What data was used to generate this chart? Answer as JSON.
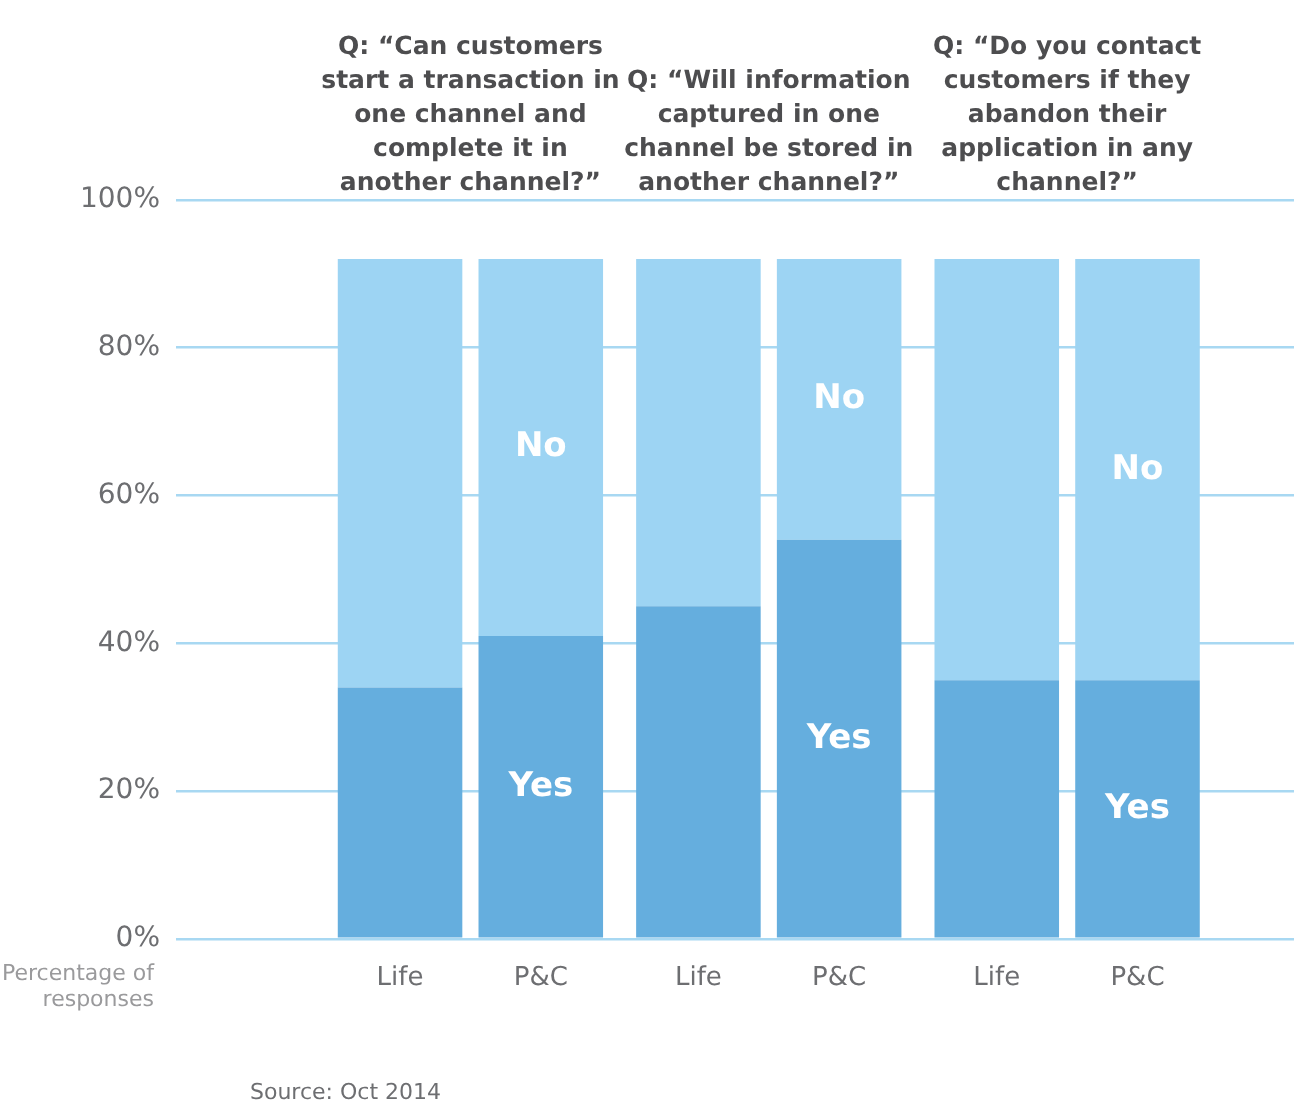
{
  "chart_data": {
    "type": "bar",
    "stacked": true,
    "ylabel": "Percentage of responses",
    "categories": [
      "Life",
      "P&C",
      "Life",
      "P&C",
      "Life",
      "P&C"
    ],
    "series": [
      {
        "name": "Yes",
        "color": "#65aede",
        "values": [
          34,
          41,
          45,
          54,
          35,
          35
        ]
      },
      {
        "name": "No",
        "color": "#9dd4f3",
        "values": [
          58,
          51,
          47,
          38,
          57,
          57
        ]
      }
    ],
    "ylim": [
      0,
      100
    ],
    "yticks": [
      {
        "value": 0,
        "label": "0%"
      },
      {
        "value": 20,
        "label": "20%"
      },
      {
        "value": 40,
        "label": "40%"
      },
      {
        "value": 60,
        "label": "60%"
      },
      {
        "value": 80,
        "label": "80%"
      },
      {
        "value": 100,
        "label": "100%"
      }
    ],
    "grid": "y",
    "annotations": [
      "Q: “Can customers start a transaction in one channel and complete it in another channel?”",
      "Q: “Will information captured in one channel be stored in another channel?”",
      "Q: “Do you contact customers if they abandon their application in any channel?”",
      "Source: Oct 2014"
    ]
  }
}
